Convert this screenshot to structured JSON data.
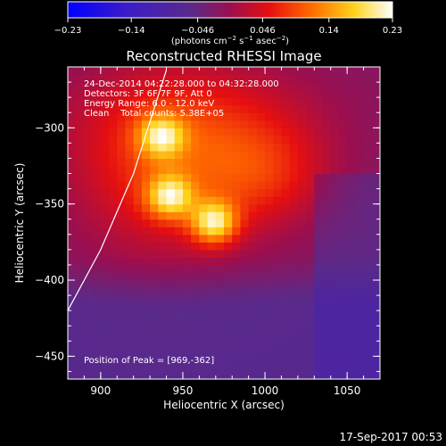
{
  "chart_data": {
    "type": "heatmap",
    "title": "Reconstructed RHESSI Image",
    "xlabel": "Heliocentric X (arcsec)",
    "ylabel": "Heliocentric Y (arcsec)",
    "xlim": [
      880,
      1070
    ],
    "ylim": [
      -465,
      -260
    ],
    "x_ticks": [
      900,
      950,
      1000,
      1050
    ],
    "x_tick_labels": [
      "900",
      "950",
      "1000",
      "1050"
    ],
    "y_ticks": [
      -300,
      -350,
      -400,
      -450
    ],
    "y_tick_labels": [
      "−300",
      "−350",
      "−400",
      "−450"
    ],
    "colorbar": {
      "min": -0.23,
      "max": 0.23,
      "ticks": [
        -0.23,
        -0.14,
        -0.046,
        0.046,
        0.14,
        0.23
      ],
      "tick_labels": [
        "−0.23",
        "−0.14",
        "−0.046",
        "0.046",
        "0.14",
        "0.23"
      ],
      "units_prefix": "(photons cm",
      "units_sup1": "−2",
      "units_mid1": " s",
      "units_sup2": "−1",
      "units_mid2": " asec",
      "units_sup3": "−2",
      "units_suffix": ")"
    },
    "annotations": [
      "24-Dec-2014 04:22:28.000 to 04:32:28.000",
      "Detectors: 3F 6F 7F 9F, Att 0",
      "Energy Range: 6.0 - 12.0 keV",
      "Clean    Total counts: 5.38E+05"
    ],
    "peak_text": "Position of Peak = [969,-362]",
    "peak": [
      969,
      -362
    ],
    "sources": [
      {
        "x": 969,
        "y": -362,
        "amp": 0.23
      },
      {
        "x": 942,
        "y": -345,
        "amp": 0.2
      },
      {
        "x": 937,
        "y": -305,
        "amp": 0.18
      }
    ],
    "limb_curve": [
      [
        880,
        -420
      ],
      [
        900,
        -380
      ],
      [
        920,
        -330
      ],
      [
        940,
        -262
      ]
    ],
    "timestamp": "17-Sep-2017 00:53",
    "colors": {
      "background": "#000000",
      "low": "#0000ff",
      "mid_dark": "#5b2d8c",
      "high": "#ffffff",
      "text": "#ffffff"
    }
  }
}
